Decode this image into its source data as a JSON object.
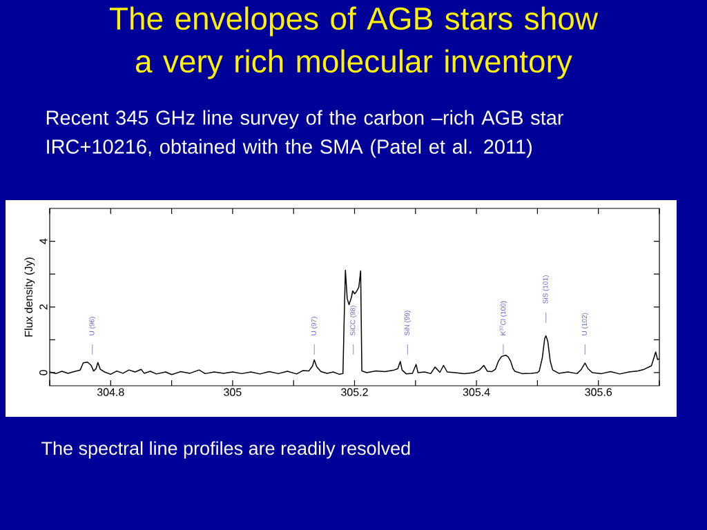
{
  "chart_data": {
    "type": "line",
    "title": "The envelopes of AGB stars show a very rich molecular inventory",
    "subtitle": "Recent 345 GHz line survey of the carbon –rich AGB star IRC+10216, obtained with the SMA (Patel et al. 2011)",
    "ylabel": "Flux density (Jy)",
    "xlim": [
      304.7,
      305.7
    ],
    "ylim": [
      -0.4,
      5
    ],
    "xticks": [
      {
        "value": 304.7,
        "label": null
      },
      304.8,
      {
        "value": 304.9,
        "label": null
      },
      305,
      {
        "value": 305.1,
        "label": null
      },
      305.2,
      {
        "value": 305.3,
        "label": null
      },
      305.4,
      {
        "value": 305.5,
        "label": null
      },
      305.6,
      {
        "value": 305.7,
        "label": null
      }
    ],
    "yticks": [
      0,
      {
        "value": 1,
        "label": null
      },
      2,
      {
        "value": 3,
        "label": null
      },
      4
    ],
    "series": [
      {
        "color": "#000000",
        "x": [
          304.7,
          304.71,
          304.72,
          304.73,
          304.74,
          304.75,
          304.755,
          304.762,
          304.768,
          304.772,
          304.776,
          304.779,
          304.783,
          304.79,
          304.8,
          304.81,
          304.82,
          304.83,
          304.84,
          304.85,
          304.855,
          304.865,
          304.875,
          304.89,
          304.9,
          304.915,
          304.93,
          304.945,
          304.955,
          304.97,
          304.985,
          305.0,
          305.015,
          305.03,
          305.045,
          305.06,
          305.075,
          305.09,
          305.105,
          305.115,
          305.125,
          305.131,
          305.134,
          305.138,
          305.145,
          305.155,
          305.165,
          305.175,
          305.181,
          305.183,
          305.185,
          305.188,
          305.191,
          305.195,
          305.197,
          305.2,
          305.203,
          305.207,
          305.21,
          305.212,
          305.22,
          305.235,
          305.25,
          305.265,
          305.271,
          305.275,
          305.278,
          305.285,
          305.295,
          305.301,
          305.304,
          305.315,
          305.325,
          305.332,
          305.34,
          305.346,
          305.352,
          305.365,
          305.38,
          305.395,
          305.405,
          305.412,
          305.418,
          305.425,
          305.431,
          305.436,
          305.441,
          305.448,
          305.452,
          305.456,
          305.46,
          305.463,
          305.475,
          305.49,
          305.5,
          305.503,
          305.508,
          305.512,
          305.514,
          305.517,
          305.521,
          305.525,
          305.535,
          305.55,
          305.565,
          305.572,
          305.578,
          305.583,
          305.59,
          305.605,
          305.62,
          305.635,
          305.65,
          305.665,
          305.675,
          305.687,
          305.694,
          305.697,
          305.7
        ],
        "values": [
          0.02,
          -0.03,
          0.04,
          -0.02,
          0.03,
          0.08,
          0.3,
          0.32,
          0.22,
          0.05,
          0.12,
          0.31,
          0.1,
          0.02,
          -0.05,
          0.05,
          -0.02,
          0.08,
          0.02,
          0.1,
          -0.02,
          0.04,
          -0.04,
          0.02,
          -0.06,
          0.03,
          -0.02,
          0.08,
          -0.03,
          0.02,
          -0.02,
          0.02,
          -0.03,
          0.02,
          -0.04,
          0.03,
          -0.03,
          0.04,
          -0.04,
          0.06,
          0.05,
          0.2,
          0.39,
          0.18,
          0.03,
          -0.02,
          0.02,
          -0.05,
          -0.03,
          1.65,
          3.12,
          2.25,
          2.07,
          2.3,
          2.49,
          2.4,
          2.46,
          2.6,
          3.1,
          0.05,
          0.0,
          0.05,
          0.03,
          0.08,
          0.12,
          0.34,
          0.08,
          -0.04,
          -0.02,
          0.25,
          0.0,
          0.02,
          -0.03,
          0.17,
          0.01,
          0.22,
          0.02,
          0.0,
          -0.03,
          0.0,
          0.08,
          0.22,
          0.04,
          0.03,
          0.1,
          0.35,
          0.49,
          0.53,
          0.48,
          0.35,
          0.12,
          0.04,
          -0.03,
          -0.02,
          0.0,
          0.05,
          0.45,
          1.05,
          1.12,
          0.95,
          0.35,
          0.08,
          -0.02,
          0.02,
          -0.03,
          0.1,
          0.29,
          0.12,
          0.0,
          -0.03,
          0.03,
          -0.04,
          0.02,
          0.05,
          0.1,
          0.21,
          0.63,
          0.4,
          0.42
        ]
      }
    ],
    "ref_lines": [
      {
        "axis": "x",
        "value": 304.77,
        "label": "U (96)",
        "color": "#6666cc"
      },
      {
        "axis": "x",
        "value": 305.134,
        "label": "U (97)",
        "color": "#6666cc"
      },
      {
        "axis": "x",
        "value": 305.198,
        "label": "SiCC (98)",
        "color": "#6666cc"
      },
      {
        "axis": "x",
        "value": 305.287,
        "label": "SiN (99)",
        "color": "#6666cc"
      },
      {
        "axis": "x",
        "value": 305.444,
        "label": "K$^{37}$Cl (100)",
        "color": "#6666cc"
      },
      {
        "axis": "x",
        "value": 305.514,
        "label": "SiS (101)",
        "color": "#6666cc"
      },
      {
        "axis": "x",
        "value": 305.578,
        "label": "U (102)",
        "color": "#6666cc"
      }
    ],
    "annotations": [
      "The spectral line profiles are readily resolved"
    ]
  }
}
